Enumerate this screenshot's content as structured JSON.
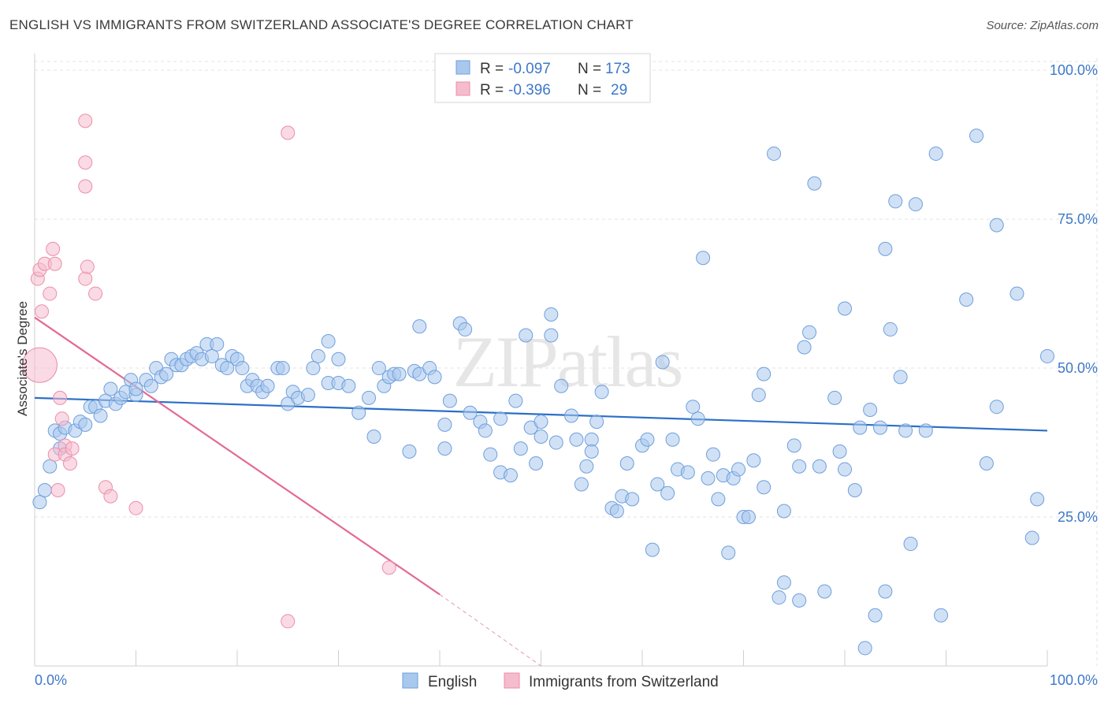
{
  "header": {
    "title": "ENGLISH VS IMMIGRANTS FROM SWITZERLAND ASSOCIATE'S DEGREE CORRELATION CHART",
    "source": "Source: ZipAtlas.com"
  },
  "watermark": "ZIPatlas",
  "chart_data": {
    "type": "scatter",
    "title": "ENGLISH VS IMMIGRANTS FROM SWITZERLAND ASSOCIATE'S DEGREE CORRELATION CHART",
    "ylabel": "Associate's Degree",
    "xlim": [
      0,
      100
    ],
    "ylim": [
      0,
      102
    ],
    "x_tick_labels": [
      "0.0%",
      "100.0%"
    ],
    "y_ticks": [
      25,
      50,
      75,
      100
    ],
    "y_tick_labels": [
      "25.0%",
      "50.0%",
      "75.0%",
      "100.0%"
    ],
    "grid": true,
    "legend_position": "top-center",
    "stats": [
      {
        "r_label": "R =",
        "r": "-0.097",
        "n_label": "N =",
        "n": "173"
      },
      {
        "r_label": "R =",
        "r": "-0.396",
        "n_label": "N =",
        "n": "29"
      }
    ],
    "series": [
      {
        "name": "English",
        "color": "#a9c8ee",
        "edge": "#6f9fdb",
        "trend": {
          "x": [
            0,
            100
          ],
          "y": [
            45,
            39.5
          ],
          "color": "#2b6fc7"
        },
        "points": [
          [
            0.5,
            27.5
          ],
          [
            1,
            29.5
          ],
          [
            1.5,
            33.5
          ],
          [
            2,
            39.5
          ],
          [
            2.5,
            36.5
          ],
          [
            2.5,
            39
          ],
          [
            3,
            40
          ],
          [
            4,
            39.5
          ],
          [
            4.5,
            41
          ],
          [
            5,
            40.5
          ],
          [
            5.5,
            43.5
          ],
          [
            6,
            43.5
          ],
          [
            6.5,
            42
          ],
          [
            7,
            44.5
          ],
          [
            7.5,
            46.5
          ],
          [
            8,
            44
          ],
          [
            8.5,
            45
          ],
          [
            9,
            46
          ],
          [
            9.5,
            48
          ],
          [
            10,
            45.5
          ],
          [
            10,
            46.5
          ],
          [
            11,
            48
          ],
          [
            11.5,
            47
          ],
          [
            12,
            50
          ],
          [
            12.5,
            48.5
          ],
          [
            13,
            49
          ],
          [
            13.5,
            51.5
          ],
          [
            14,
            50.5
          ],
          [
            14.5,
            50.5
          ],
          [
            15,
            51.5
          ],
          [
            15.5,
            52
          ],
          [
            16,
            52.5
          ],
          [
            16.5,
            51.5
          ],
          [
            17,
            54
          ],
          [
            17.5,
            52
          ],
          [
            18,
            54
          ],
          [
            18.5,
            50.5
          ],
          [
            19,
            50
          ],
          [
            19.5,
            52
          ],
          [
            20,
            51.5
          ],
          [
            20.5,
            50
          ],
          [
            21,
            47
          ],
          [
            21.5,
            48
          ],
          [
            22,
            47
          ],
          [
            22.5,
            46
          ],
          [
            23,
            47
          ],
          [
            24,
            50
          ],
          [
            24.5,
            50
          ],
          [
            25,
            44
          ],
          [
            25.5,
            46
          ],
          [
            26,
            45
          ],
          [
            27,
            45.5
          ],
          [
            27.5,
            50
          ],
          [
            28,
            52
          ],
          [
            29,
            54.5
          ],
          [
            29,
            47.5
          ],
          [
            30,
            51.5
          ],
          [
            30,
            47.5
          ],
          [
            31,
            47
          ],
          [
            32,
            42.5
          ],
          [
            33,
            45
          ],
          [
            33.5,
            38.5
          ],
          [
            34,
            50
          ],
          [
            34.5,
            47
          ],
          [
            35,
            48.5
          ],
          [
            35.5,
            49
          ],
          [
            36,
            49
          ],
          [
            37,
            36
          ],
          [
            37.5,
            49.5
          ],
          [
            38,
            49
          ],
          [
            38,
            57
          ],
          [
            39,
            50
          ],
          [
            39.5,
            48.5
          ],
          [
            40.5,
            40.5
          ],
          [
            40.5,
            36.5
          ],
          [
            41,
            44.5
          ],
          [
            42,
            57.5
          ],
          [
            42.5,
            56.5
          ],
          [
            43,
            42.5
          ],
          [
            44,
            41
          ],
          [
            44.5,
            39.5
          ],
          [
            45,
            35.5
          ],
          [
            46,
            41.5
          ],
          [
            46,
            32.5
          ],
          [
            47,
            32
          ],
          [
            47.5,
            44.5
          ],
          [
            48,
            36.5
          ],
          [
            48.5,
            55.5
          ],
          [
            49,
            40
          ],
          [
            49.5,
            34
          ],
          [
            50,
            41
          ],
          [
            50,
            38.5
          ],
          [
            51,
            55.5
          ],
          [
            51,
            59
          ],
          [
            51.5,
            37.5
          ],
          [
            52,
            47
          ],
          [
            53,
            42
          ],
          [
            53.5,
            38
          ],
          [
            54,
            30.5
          ],
          [
            54.5,
            33.5
          ],
          [
            55,
            38
          ],
          [
            55,
            36
          ],
          [
            55.5,
            41
          ],
          [
            56,
            46
          ],
          [
            57,
            26.5
          ],
          [
            57.5,
            26
          ],
          [
            58,
            28.5
          ],
          [
            58.5,
            34
          ],
          [
            59,
            28
          ],
          [
            60,
            37
          ],
          [
            60.5,
            38
          ],
          [
            61,
            19.5
          ],
          [
            61.5,
            30.5
          ],
          [
            62,
            51
          ],
          [
            62.5,
            29
          ],
          [
            63,
            38
          ],
          [
            63.5,
            33
          ],
          [
            64.5,
            32.5
          ],
          [
            65,
            43.5
          ],
          [
            65.5,
            41.5
          ],
          [
            66,
            68.5
          ],
          [
            66.5,
            31.5
          ],
          [
            67,
            35.5
          ],
          [
            67.5,
            28
          ],
          [
            68,
            32
          ],
          [
            68.5,
            19
          ],
          [
            69,
            31.5
          ],
          [
            69.5,
            33
          ],
          [
            70,
            25
          ],
          [
            70.5,
            25
          ],
          [
            71,
            34.5
          ],
          [
            71.5,
            45.5
          ],
          [
            72,
            30
          ],
          [
            72,
            49
          ],
          [
            73,
            86
          ],
          [
            73.5,
            11.5
          ],
          [
            74,
            14
          ],
          [
            74,
            26
          ],
          [
            75,
            37
          ],
          [
            75.5,
            11
          ],
          [
            75.5,
            33.5
          ],
          [
            76,
            53.5
          ],
          [
            76.5,
            56
          ],
          [
            77,
            81
          ],
          [
            77.5,
            33.5
          ],
          [
            78,
            12.5
          ],
          [
            79,
            45
          ],
          [
            79.5,
            36
          ],
          [
            80,
            60
          ],
          [
            80,
            33
          ],
          [
            81,
            29.5
          ],
          [
            81.5,
            40
          ],
          [
            82,
            3
          ],
          [
            82.5,
            43
          ],
          [
            83,
            8.5
          ],
          [
            83.5,
            40
          ],
          [
            84,
            70
          ],
          [
            84,
            12.5
          ],
          [
            84.5,
            56.5
          ],
          [
            85,
            78
          ],
          [
            85.5,
            48.5
          ],
          [
            86,
            39.5
          ],
          [
            86.5,
            20.5
          ],
          [
            87,
            77.5
          ],
          [
            88,
            39.5
          ],
          [
            89,
            86
          ],
          [
            89.5,
            8.5
          ],
          [
            92,
            61.5
          ],
          [
            93,
            89
          ],
          [
            94,
            34
          ],
          [
            95,
            74
          ],
          [
            95,
            43.5
          ],
          [
            97,
            62.5
          ],
          [
            98.5,
            21.5
          ],
          [
            99,
            28
          ],
          [
            100,
            52
          ]
        ],
        "big_points": [
          [
            0.5,
            50.5
          ]
        ]
      },
      {
        "name": "Immigrants from Switzerland",
        "color": "#f5bccd",
        "edge": "#ec8eaa",
        "trend": {
          "x": [
            0,
            40
          ],
          "y": [
            58.5,
            12
          ],
          "dash_to": [
            50,
            0
          ],
          "color": "#e36a92"
        },
        "points": [
          [
            0.3,
            65
          ],
          [
            0.5,
            66.5
          ],
          [
            0.7,
            59.5
          ],
          [
            1,
            67.5
          ],
          [
            1.5,
            62.5
          ],
          [
            1.8,
            70
          ],
          [
            2,
            67.5
          ],
          [
            2,
            35.5
          ],
          [
            2.3,
            29.5
          ],
          [
            2.5,
            45
          ],
          [
            2.7,
            41.5
          ],
          [
            3,
            37
          ],
          [
            3,
            35.5
          ],
          [
            3.5,
            34
          ],
          [
            3.7,
            36.5
          ],
          [
            5,
            91.5
          ],
          [
            5,
            84.5
          ],
          [
            5,
            80.5
          ],
          [
            5,
            65
          ],
          [
            5.2,
            67
          ],
          [
            6,
            62.5
          ],
          [
            7,
            30
          ],
          [
            7.5,
            28.5
          ],
          [
            10,
            26.5
          ],
          [
            25,
            89.5
          ],
          [
            35,
            16.5
          ],
          [
            25,
            7.5
          ]
        ]
      }
    ]
  }
}
